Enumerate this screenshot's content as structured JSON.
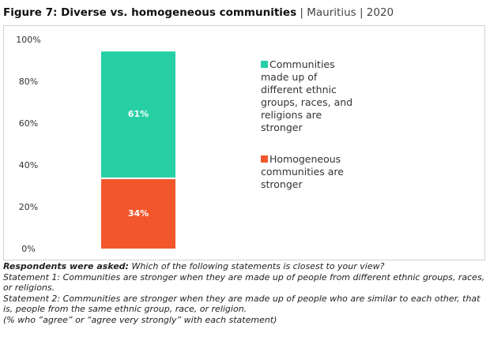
{
  "chart_data": {
    "type": "stacked_bar",
    "title": "Figure 7: Diverse vs. homogeneous communities",
    "subtitle": "| Mauritius | 2020",
    "categories": [
      null
    ],
    "series": [
      {
        "name": "Communities made up of different ethnic groups, races, and religions are stronger",
        "color": "#26d0a4",
        "values": [
          61
        ],
        "value_labels": [
          "61%"
        ]
      },
      {
        "name": "Homogeneous communities are stronger",
        "color": "#f2572c",
        "values": [
          34
        ],
        "value_labels": [
          "34%"
        ]
      }
    ],
    "stack_order": "last series at bottom",
    "ylim": [
      0,
      100
    ],
    "yticks": [
      {
        "value": 0,
        "label": "0%"
      },
      {
        "value": 20,
        "label": "20%"
      },
      {
        "value": 40,
        "label": "40%"
      },
      {
        "value": 60,
        "label": "60%"
      },
      {
        "value": 80,
        "label": "80%"
      },
      {
        "value": 100,
        "label": "100%"
      }
    ],
    "legend": "right",
    "note": {
      "lead": "Respondents were asked:",
      "question": "Which of the following statements is closest to your view?",
      "lines": [
        "Statement 1: Communities are stronger when they are made up of people from different ethnic groups, races, or religions.",
        "Statement 2: Communities are stronger when they are made up of people who are similar to each other, that is, people from the same ethnic group, race, or religion.",
        "(% who “agree” or “agree very strongly” with each statement)"
      ]
    }
  }
}
